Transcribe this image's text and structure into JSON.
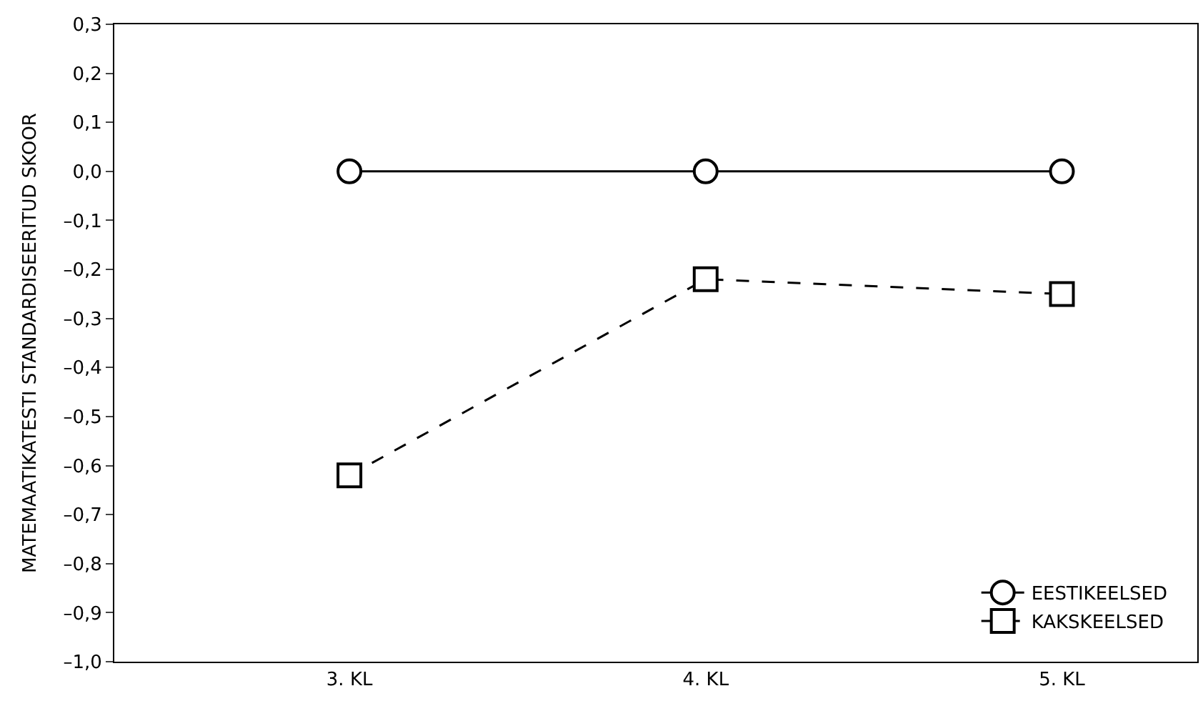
{
  "chart_data": {
    "type": "line",
    "ylabel": "MATEMAATIKATESTI STANDARDISEERITUD SKOOR",
    "categories": [
      "3. KL",
      "4. KL",
      "5. KL"
    ],
    "series": [
      {
        "name": "EESTIKEELSED",
        "color": "#000000",
        "values": [
          0.0,
          0.0,
          0.0
        ],
        "marker": "circle",
        "line_style": "solid"
      },
      {
        "name": "KAKSKEELSED",
        "color": "#000000",
        "values": [
          -0.62,
          -0.22,
          -0.25
        ],
        "marker": "square",
        "line_style": "dashed"
      }
    ],
    "ylim": [
      -1.0,
      0.3
    ],
    "yticks": [
      {
        "value": 0.3,
        "label": "0,3"
      },
      {
        "value": 0.2,
        "label": "0,2"
      },
      {
        "value": 0.1,
        "label": "0,1"
      },
      {
        "value": 0.0,
        "label": "0,0"
      },
      {
        "value": -0.1,
        "label": "–0,1"
      },
      {
        "value": -0.2,
        "label": "–0,2"
      },
      {
        "value": -0.3,
        "label": "–0,3"
      },
      {
        "value": -0.4,
        "label": "–0,4"
      },
      {
        "value": -0.5,
        "label": "–0,5"
      },
      {
        "value": -0.6,
        "label": "–0,6"
      },
      {
        "value": -0.7,
        "label": "–0,7"
      },
      {
        "value": -0.8,
        "label": "–0,8"
      },
      {
        "value": -0.9,
        "label": "–0,9"
      },
      {
        "value": -1.0,
        "label": "–1,0"
      }
    ],
    "legend": "bottom right"
  }
}
